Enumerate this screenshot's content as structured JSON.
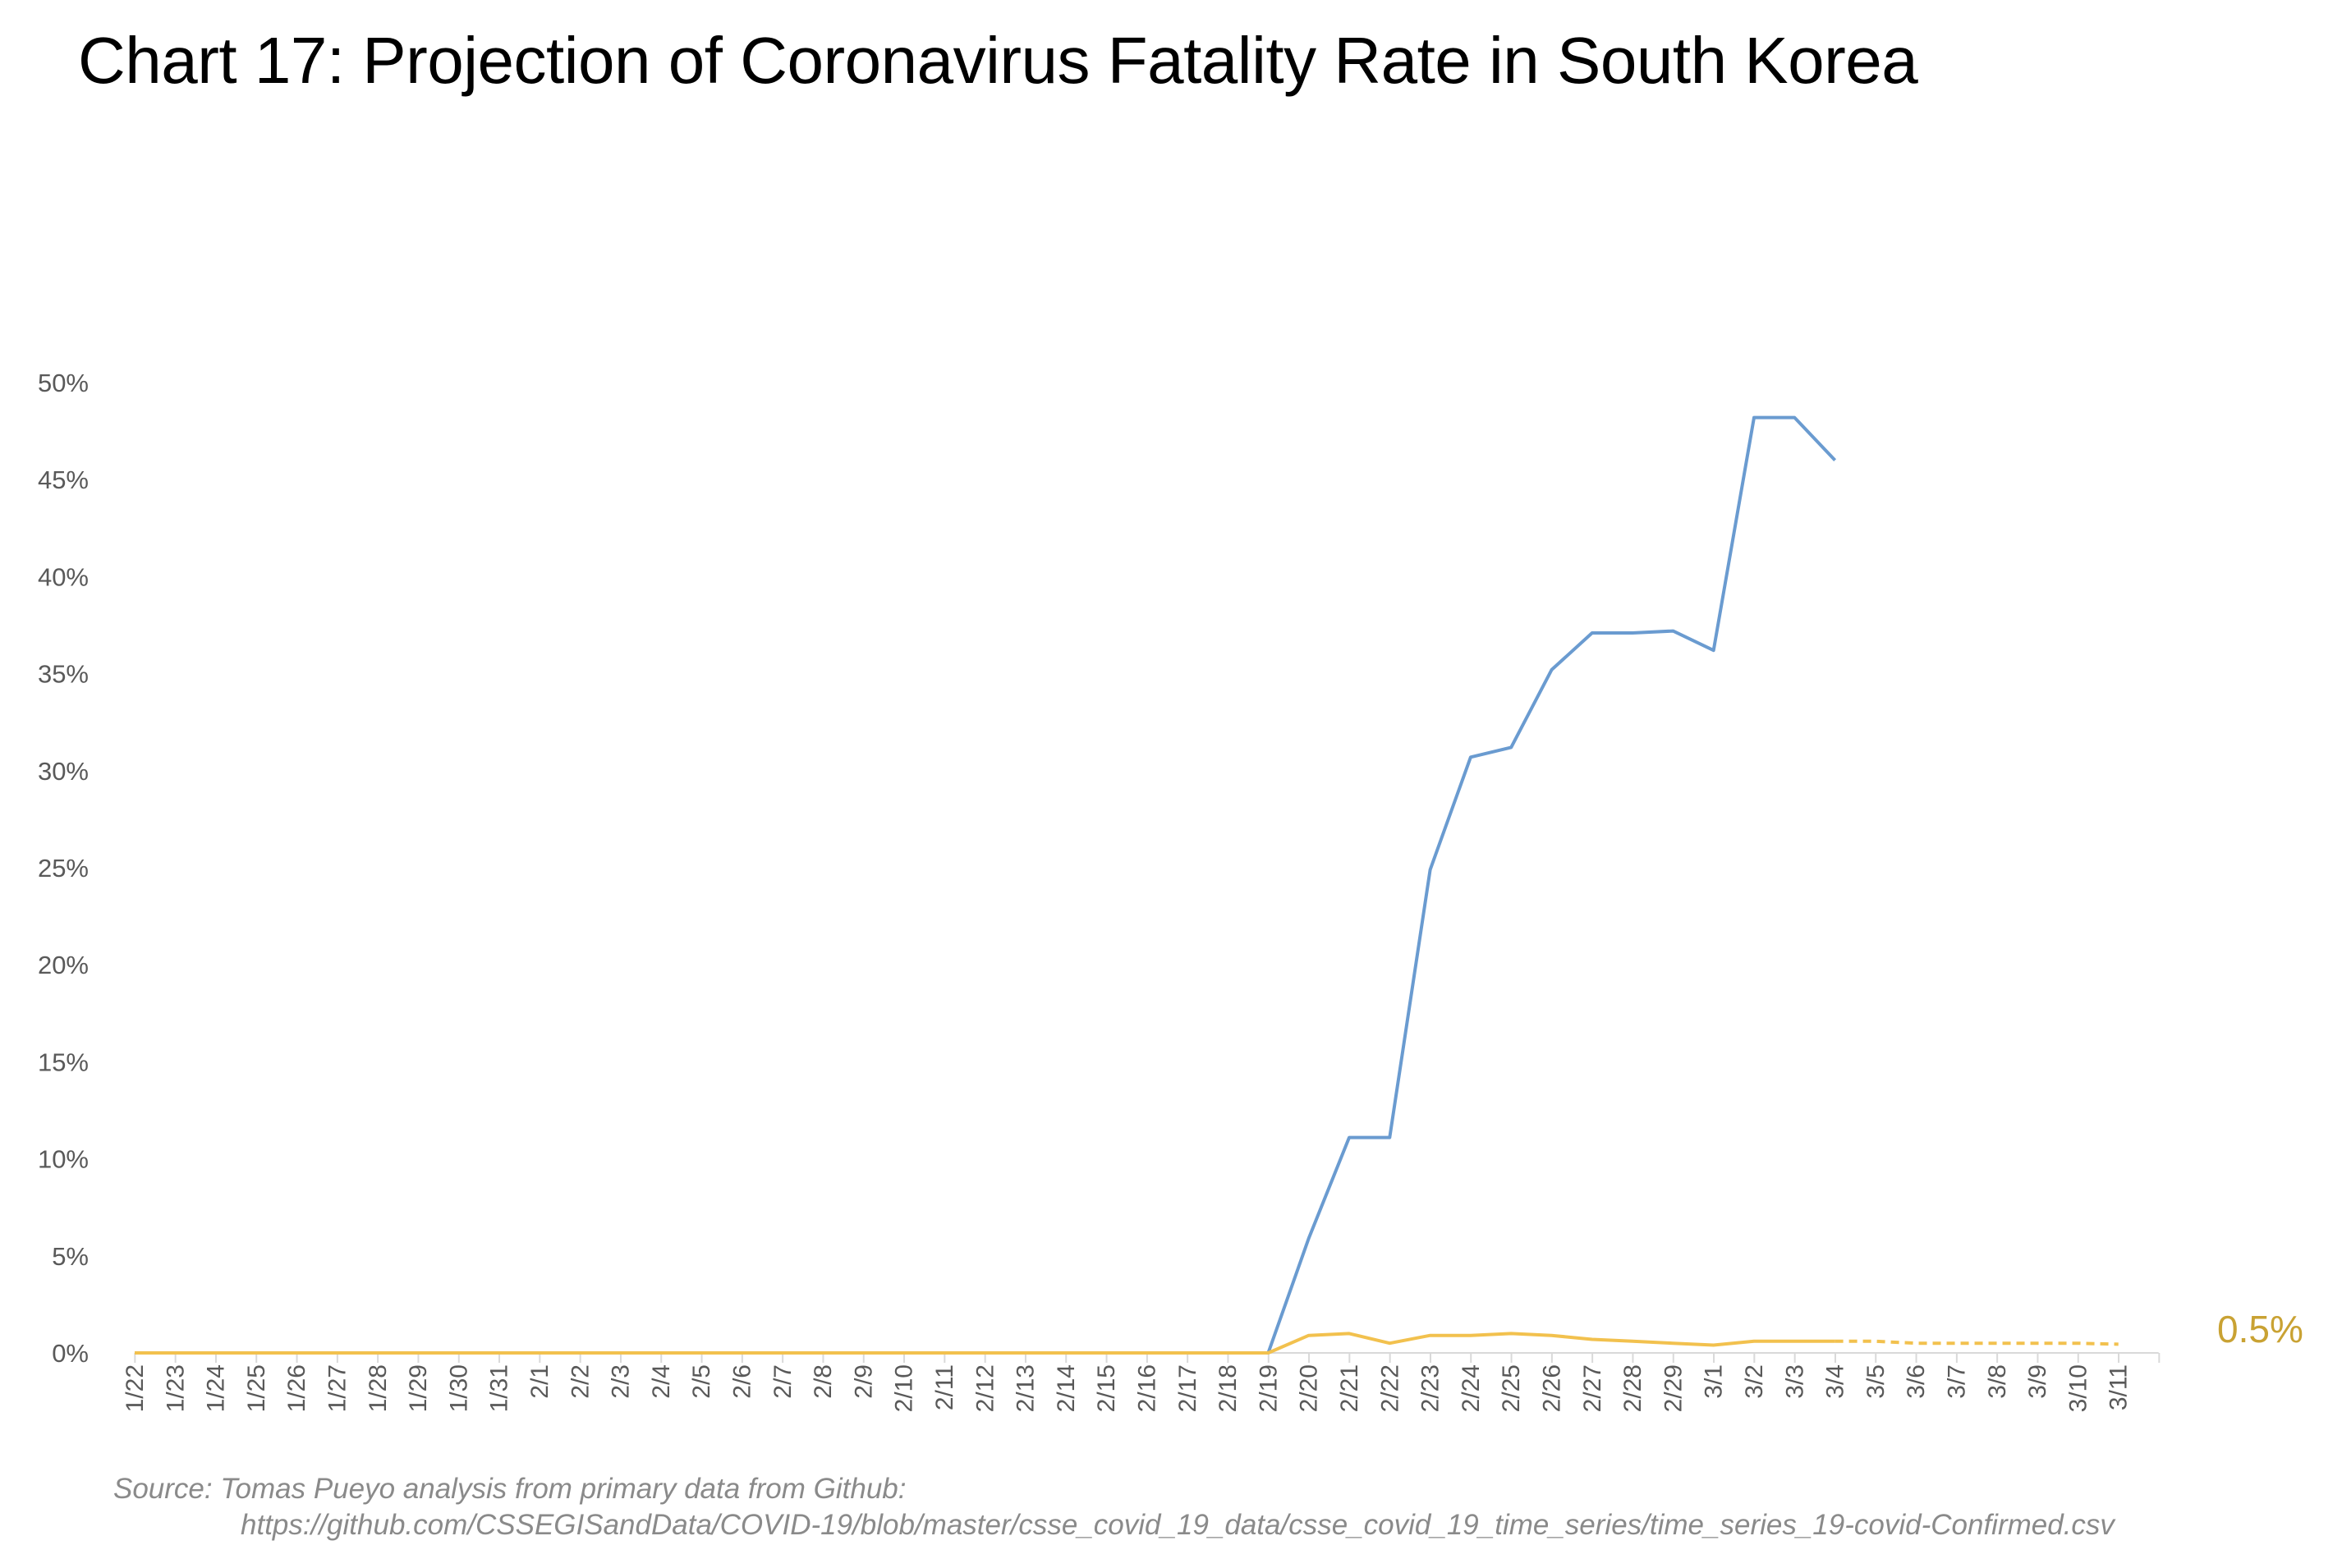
{
  "title": "Chart 17: Projection of Coronavirus Fatality Rate in South Korea",
  "source": {
    "line1": "Source: Tomas Pueyo analysis from primary data from Github:",
    "line2": "https://github.com/CSSEGISandData/COVID-19/blob/master/csse_covid_19_data/csse_covid_19_time_series/time_series_19-covid-Confirmed.csv"
  },
  "colors": {
    "blue": "#6a9bd0",
    "yellow": "#f2c14e",
    "label": "#c9a233",
    "axis": "#d9d9d9"
  },
  "chart_data": {
    "type": "line",
    "title": "Chart 17: Projection of Coronavirus Fatality Rate in South Korea",
    "ylim": [
      0,
      50
    ],
    "y_tick_labels": [
      "0%",
      "5%",
      "10%",
      "15%",
      "20%",
      "25%",
      "30%",
      "35%",
      "40%",
      "45%",
      "50%"
    ],
    "grid": false,
    "legend": "none",
    "categories": [
      "1/22",
      "1/23",
      "1/24",
      "1/25",
      "1/26",
      "1/27",
      "1/28",
      "1/29",
      "1/30",
      "1/31",
      "2/1",
      "2/2",
      "2/3",
      "2/4",
      "2/5",
      "2/6",
      "2/7",
      "2/8",
      "2/9",
      "2/10",
      "2/11",
      "2/12",
      "2/13",
      "2/14",
      "2/15",
      "2/16",
      "2/17",
      "2/18",
      "2/19",
      "2/20",
      "2/21",
      "2/22",
      "2/23",
      "2/24",
      "2/25",
      "2/26",
      "2/27",
      "2/28",
      "2/29",
      "3/1",
      "3/2",
      "3/3",
      "3/4",
      "3/5",
      "3/6",
      "3/7",
      "3/8",
      "3/9",
      "3/10",
      "3/11"
    ],
    "series": [
      {
        "color": "#6a9bd0",
        "style": "solid",
        "values": [
          0,
          0,
          0,
          0,
          0,
          0,
          0,
          0,
          0,
          0,
          0,
          0,
          0,
          0,
          0,
          0,
          0,
          0,
          0,
          0,
          0,
          0,
          0,
          0,
          0,
          0,
          0,
          0,
          0,
          5.9,
          11.1,
          11.1,
          24.9,
          30.7,
          31.2,
          35.2,
          37.1,
          37.1,
          37.2,
          36.2,
          48.2,
          48.2,
          46.0,
          null,
          null,
          null,
          null,
          null,
          null,
          null
        ]
      },
      {
        "color": "#f2c14e",
        "style": "solid",
        "values": [
          0,
          0,
          0,
          0,
          0,
          0,
          0,
          0,
          0,
          0,
          0,
          0,
          0,
          0,
          0,
          0,
          0,
          0,
          0,
          0,
          0,
          0,
          0,
          0,
          0,
          0,
          0,
          0,
          0,
          0.9,
          1.0,
          0.5,
          0.9,
          0.9,
          1.0,
          0.9,
          0.7,
          0.6,
          0.5,
          0.4,
          0.6,
          0.6,
          0.6,
          null,
          null,
          null,
          null,
          null,
          null,
          null
        ]
      },
      {
        "color": "#f2c14e",
        "style": "dashed",
        "values": [
          null,
          null,
          null,
          null,
          null,
          null,
          null,
          null,
          null,
          null,
          null,
          null,
          null,
          null,
          null,
          null,
          null,
          null,
          null,
          null,
          null,
          null,
          null,
          null,
          null,
          null,
          null,
          null,
          null,
          null,
          null,
          null,
          null,
          null,
          null,
          null,
          null,
          null,
          null,
          null,
          null,
          null,
          0.6,
          0.6,
          0.5,
          0.5,
          0.5,
          0.5,
          0.5,
          0.45
        ]
      }
    ],
    "annotations": [
      {
        "text": "0.5%",
        "color": "#c9a233"
      }
    ]
  }
}
